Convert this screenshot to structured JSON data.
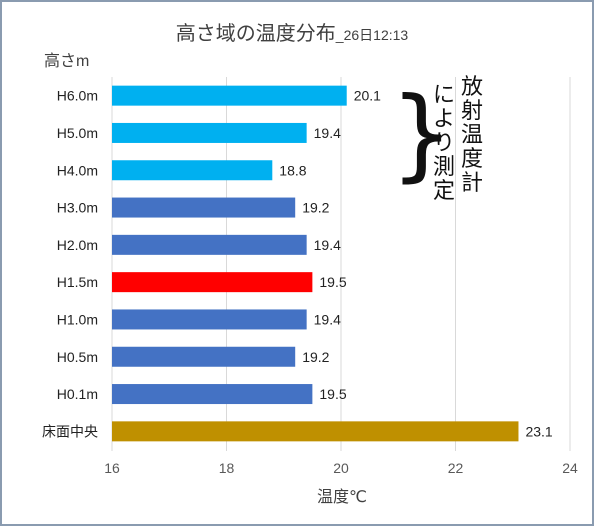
{
  "chart_data": {
    "type": "bar",
    "orientation": "horizontal",
    "title": "高さ域の温度分布",
    "title_suffix": "_26日12:13",
    "ylabel": "高さm",
    "xlabel": "温度℃",
    "xlim": [
      16,
      24
    ],
    "xticks": [
      16,
      18,
      20,
      22,
      24
    ],
    "grid": true,
    "categories": [
      "H6.0m",
      "H5.0m",
      "H4.0m",
      "H3.0m",
      "H2.0m",
      "H1.5m",
      "H1.0m",
      "H0.5m",
      "H0.1m",
      "床面中央"
    ],
    "values": [
      20.1,
      19.4,
      18.8,
      19.2,
      19.4,
      19.5,
      19.4,
      19.2,
      19.5,
      23.1
    ],
    "value_labels": [
      "20.1",
      "19.4",
      "18.8",
      "19.2",
      "19.4",
      "19.5",
      "19.4",
      "19.2",
      "19.5",
      "23.1"
    ],
    "bar_colors": [
      "#00b0f0",
      "#00b0f0",
      "#00b0f0",
      "#4472c4",
      "#4472c4",
      "#ff0000",
      "#4472c4",
      "#4472c4",
      "#4472c4",
      "#bf9000"
    ],
    "annotation": {
      "bracket": "}",
      "columns": [
        "により測定",
        "放射温度計"
      ]
    }
  }
}
